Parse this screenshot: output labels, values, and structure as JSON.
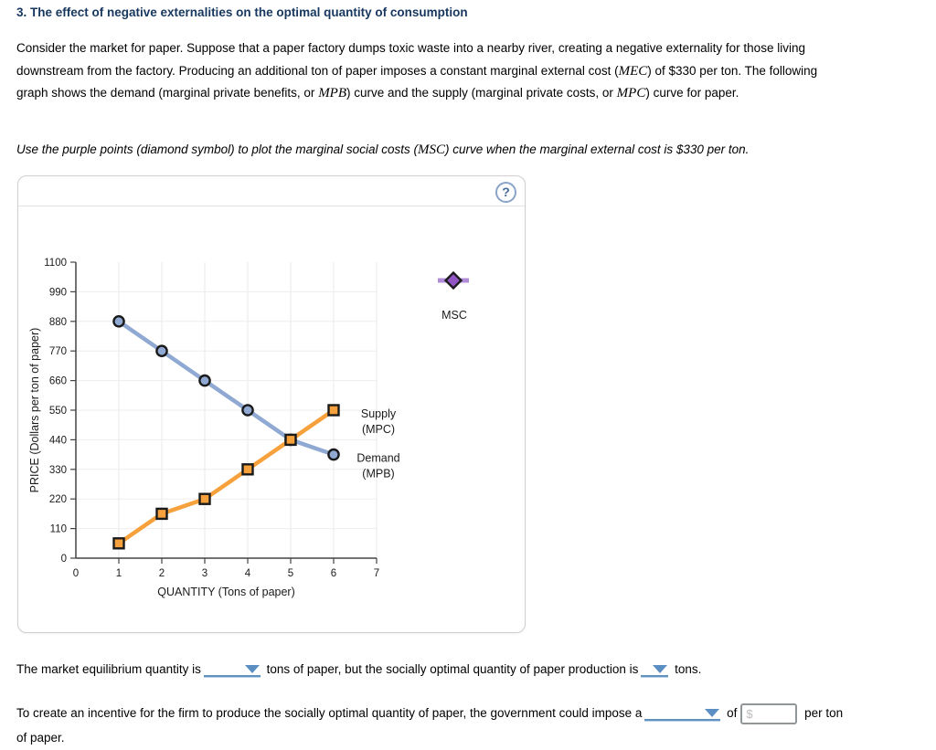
{
  "page": {
    "title": "3. The effect of negative externalities on the optimal quantity of consumption",
    "paragraph_segments": [
      {
        "t": "text",
        "v": "Consider the market for paper. Suppose that a paper factory dumps toxic waste into a nearby river, creating a negative externality for those living"
      },
      {
        "t": "break"
      },
      {
        "t": "text",
        "v": "downstream from the factory. Producing an additional ton of paper imposes a constant marginal external cost ("
      },
      {
        "t": "math",
        "v": "MEC"
      },
      {
        "t": "text",
        "v": ") of $330 per ton. The following"
      },
      {
        "t": "break"
      },
      {
        "t": "text",
        "v": "graph shows the demand (marginal private benefits, or "
      },
      {
        "t": "math",
        "v": "MPB"
      },
      {
        "t": "text",
        "v": ") curve and the supply (marginal private costs, or "
      },
      {
        "t": "math",
        "v": "MPC"
      },
      {
        "t": "text",
        "v": ") curve for paper."
      }
    ],
    "instruction_segments": [
      {
        "t": "text",
        "v": "Use the purple points (diamond symbol) to plot the marginal social costs ("
      },
      {
        "t": "math",
        "v": "MSC"
      },
      {
        "t": "text",
        "v": ") curve when the marginal external cost is $330 per ton."
      }
    ]
  },
  "panel": {
    "help_icon": "?"
  },
  "chart_data": {
    "type": "line",
    "title": "",
    "xlabel": "QUANTITY (Tons of paper)",
    "ylabel": "PRICE (Dollars per ton of paper)",
    "xlim": [
      0,
      7
    ],
    "ylim": [
      0,
      1100
    ],
    "x_ticks": [
      0,
      1,
      2,
      3,
      4,
      5,
      6,
      7
    ],
    "y_ticks": [
      0,
      110,
      220,
      330,
      440,
      550,
      660,
      770,
      880,
      990,
      1100
    ],
    "grid": true,
    "legend_position": "right-of-last-point",
    "series": [
      {
        "name": "Demand (MPB)",
        "legend_lines": [
          "Demand",
          "(MPB)"
        ],
        "marker": "circle",
        "color": "#8FA9D3",
        "x": [
          1,
          2,
          3,
          4,
          5,
          6
        ],
        "values": [
          880,
          770,
          660,
          550,
          440,
          385
        ]
      },
      {
        "name": "Supply (MPC)",
        "legend_lines": [
          "Supply",
          "(MPC)"
        ],
        "marker": "square",
        "color": "#F7A13C",
        "x": [
          1,
          2,
          3,
          4,
          5,
          6
        ],
        "values": [
          55,
          165,
          220,
          330,
          440,
          550
        ]
      }
    ],
    "palette": {
      "label": "MSC",
      "marker": "diamond",
      "line_color": "#B18BD8",
      "fill": "#9257C4",
      "plotted_points": []
    }
  },
  "questions": {
    "money_placeholder": "$",
    "q1_segments": [
      {
        "t": "text",
        "v": "The market equilibrium quantity is"
      },
      {
        "t": "dropdown",
        "size": "wide",
        "name": "equilibrium-quantity-dropdown"
      },
      {
        "t": "text",
        "v": " tons of paper, but the socially optimal quantity of paper production is"
      },
      {
        "t": "dropdown",
        "size": "small",
        "name": "optimal-quantity-dropdown"
      },
      {
        "t": "text",
        "v": " tons."
      }
    ],
    "q2_segments": [
      {
        "t": "text",
        "v": "To create an incentive for the firm to produce the socially optimal quantity of paper, the government could impose a"
      },
      {
        "t": "dropdown",
        "size": "med",
        "name": "policy-type-dropdown"
      },
      {
        "t": "text",
        "v": " of"
      },
      {
        "t": "input",
        "placeholder": "$",
        "name": "tax-amount-input"
      },
      {
        "t": "text",
        "v": " per ton"
      },
      {
        "t": "break"
      },
      {
        "t": "text",
        "v": "of paper."
      }
    ]
  }
}
